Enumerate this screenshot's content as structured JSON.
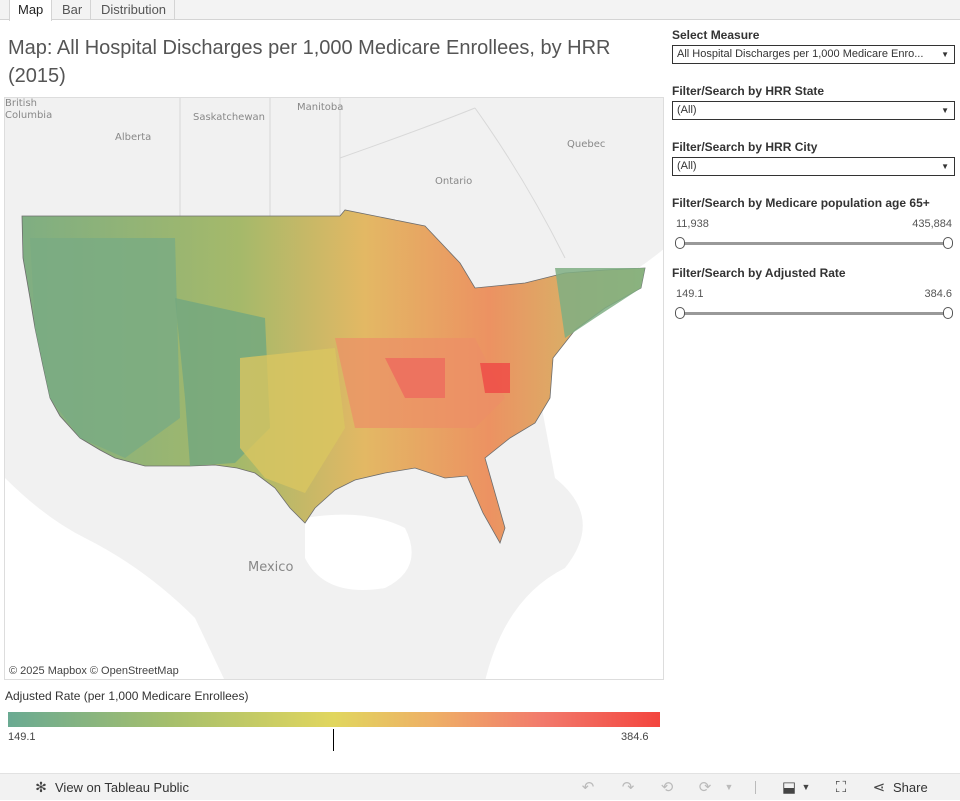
{
  "tabs": [
    {
      "label": "Map"
    },
    {
      "label": "Bar"
    },
    {
      "label": "Distribution"
    }
  ],
  "title": "Map: All Hospital Discharges per 1,000 Medicare Enrollees, by HRR (2015)",
  "map": {
    "labels": {
      "british_columbia": "British\nColumbia",
      "alberta": "Alberta",
      "saskatchewan": "Saskatchewan",
      "manitoba": "Manitoba",
      "ontario": "Ontario",
      "quebec": "Quebec",
      "mexico": "Mexico"
    },
    "attribution": "© 2025 Mapbox  © OpenStreetMap"
  },
  "legend": {
    "title": "Adjusted Rate (per 1,000 Medicare Enrollees)",
    "min": "149.1",
    "max": "384.6",
    "colors": {
      "low": "#6aaa92",
      "mid": "#e1d65e",
      "high": "#f3453e"
    }
  },
  "filters": {
    "measure": {
      "label": "Select Measure",
      "value": "All Hospital Discharges per 1,000 Medicare Enro..."
    },
    "state": {
      "label": "Filter/Search by HRR State",
      "value": "(All)"
    },
    "city": {
      "label": "Filter/Search by HRR City",
      "value": "(All)"
    },
    "population": {
      "label": "Filter/Search by Medicare population age 65+",
      "min": "11,938",
      "max": "435,884"
    },
    "rate": {
      "label": "Filter/Search by Adjusted Rate",
      "min": "149.1",
      "max": "384.6"
    }
  },
  "toolbar": {
    "view_on": "View on Tableau Public",
    "share": "Share",
    "icons": [
      "undo-icon",
      "redo-icon",
      "revert-icon",
      "refresh-icon",
      "download-icon",
      "fullscreen-icon",
      "share-icon"
    ]
  }
}
